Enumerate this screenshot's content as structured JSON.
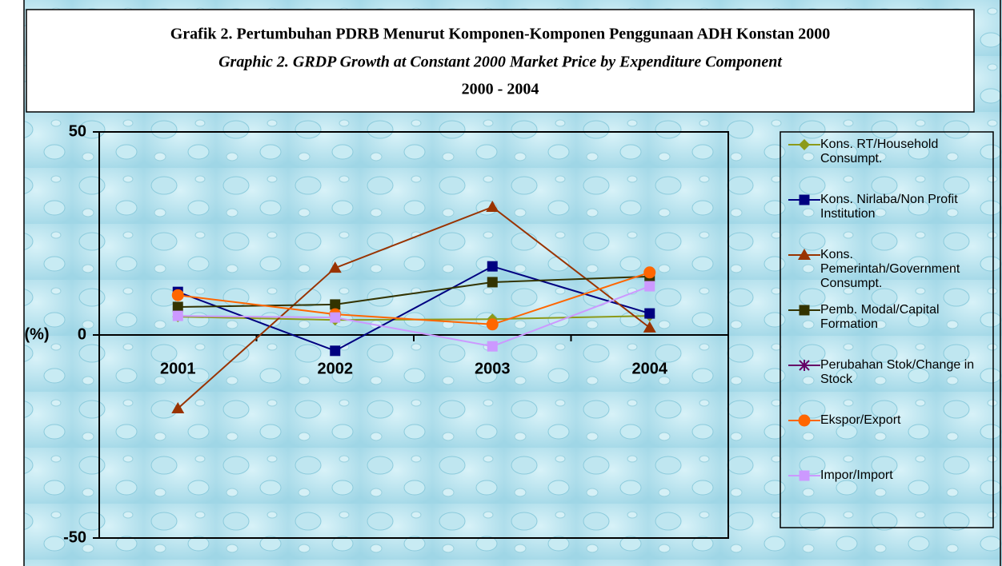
{
  "chart_data": {
    "type": "line",
    "title": "Grafik 2. Pertumbuhan PDRB Menurut Komponen-Komponen Penggunaan ADH Konstan 2000",
    "subtitle": "Graphic 2. GRDP Growth at Constant 2000 Market Price by Expenditure Component",
    "period": "2000 - 2004",
    "y_label": "(%)",
    "categories": [
      "2001",
      "2002",
      "2003",
      "2004"
    ],
    "ylim": [
      -50,
      50
    ],
    "yticks": [
      -50,
      0,
      50
    ],
    "series": [
      {
        "name": "Kons. RT/Household Consumpt.",
        "color": "#8c9a1a",
        "marker": "diamond",
        "values": [
          4.5,
          3.7,
          3.9,
          4.7
        ]
      },
      {
        "name": "Kons. Nirlaba/Non Profit Institution",
        "color": "#000080",
        "marker": "square",
        "values": [
          10.6,
          -3.9,
          16.9,
          5.3
        ]
      },
      {
        "name": "Kons. Pemerintah/Government Consumpt.",
        "color": "#993300",
        "marker": "triangle",
        "values": [
          -18.1,
          16.5,
          31.5,
          1.8
        ]
      },
      {
        "name": "Pemb. Modal/Capital Formation",
        "color": "#333300",
        "marker": "square",
        "values": [
          6.9,
          7.5,
          13.0,
          14.4
        ]
      },
      {
        "name": "Perubahan Stok/Change in Stock",
        "color": "#660066",
        "marker": "asterisk",
        "values": [
          null,
          null,
          null,
          null
        ]
      },
      {
        "name": "Ekspor/Export",
        "color": "#ff6600",
        "marker": "circle",
        "values": [
          9.8,
          5.1,
          2.6,
          15.4
        ]
      },
      {
        "name": "Impor/Import",
        "color": "#cc99ff",
        "marker": "square",
        "values": [
          4.7,
          4.3,
          -2.8,
          12.0
        ]
      }
    ]
  }
}
